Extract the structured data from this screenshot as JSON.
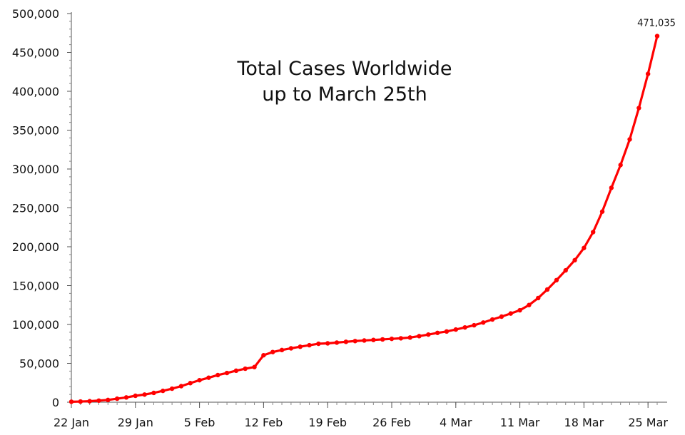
{
  "chart_data": {
    "type": "line",
    "title_lines": [
      "Total Cases Worldwide",
      "up to March 25th"
    ],
    "xlabel": "",
    "ylabel": "",
    "ylim": [
      0,
      500000
    ],
    "y_ticks": [
      0,
      50000,
      100000,
      150000,
      200000,
      250000,
      300000,
      350000,
      400000,
      450000,
      500000
    ],
    "y_tick_labels": [
      "0",
      "50,000",
      "100,000",
      "150,000",
      "200,000",
      "250,000",
      "300,000",
      "350,000",
      "400,000",
      "450,000",
      "500,000"
    ],
    "x_tick_labels": [
      "22 Jan",
      "29 Jan",
      "5 Feb",
      "12 Feb",
      "19 Feb",
      "26 Feb",
      "4 Mar",
      "11 Mar",
      "18 Mar",
      "25 Mar"
    ],
    "x_tick_days_apart": 7,
    "grid": false,
    "line_color": "#ff0000",
    "series": [
      {
        "values": [
          580,
          850,
          1300,
          2050,
          2900,
          4500,
          6100,
          8250,
          9850,
          11950,
          14600,
          17400,
          20650,
          24550,
          28300,
          31500,
          34900,
          37600,
          40500,
          43100,
          45200,
          60400,
          64500,
          67100,
          69300,
          71350,
          73300,
          75200,
          75700,
          76700,
          77700,
          78650,
          79400,
          80100,
          80800,
          81500,
          82200,
          83200,
          85000,
          87000,
          89200,
          91000,
          93500,
          96200,
          99000,
          102500,
          106400,
          110100,
          114100,
          118300,
          125000,
          134000,
          145000,
          157000,
          169600,
          182700,
          198400,
          218800,
          245200,
          275800,
          305200,
          338100,
          378400,
          422400,
          471035
        ]
      }
    ],
    "annotations": [
      {
        "text": "471,035",
        "point_index": 64
      }
    ]
  }
}
